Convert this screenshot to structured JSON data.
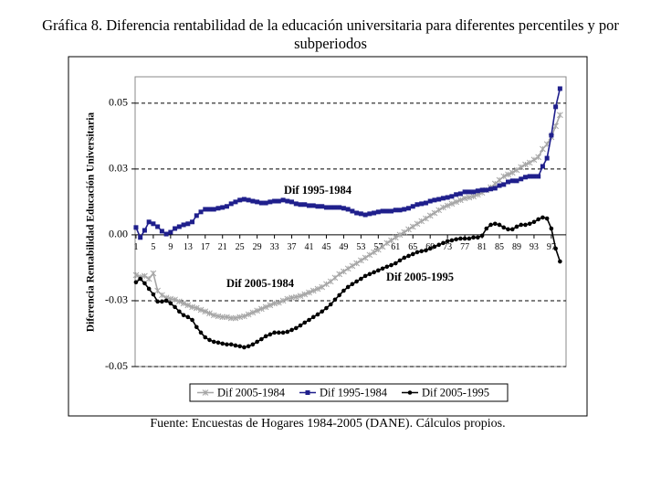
{
  "chart_data": {
    "type": "line",
    "title": "Gráfica 8. Diferencia rentabilidad de la educación universitaria para diferentes percentiles y por subperiodos",
    "ylabel": "Diferencia Rentabilidad Educación Universitaria",
    "source": "Fuente: Encuestas de Hogares 1984-2005 (DANE). Cálculos propios.",
    "annotations": [
      "Dif 1995-1984",
      "Dif 2005-1984",
      "Dif 2005-1995"
    ],
    "legend": "bottom",
    "grid": true,
    "xlim": [
      0.8,
      100.4
    ],
    "xticks": [
      1,
      5,
      9,
      13,
      17,
      21,
      25,
      29,
      33,
      37,
      41,
      45,
      49,
      53,
      57,
      61,
      65,
      69,
      73,
      77,
      81,
      85,
      89,
      93,
      97
    ],
    "ylim": [
      -0.05,
      0.06
    ],
    "yticks": [
      0.05,
      {
        "value": 0.025,
        "label": "0.03"
      },
      {
        "value": 0,
        "label": "0.00"
      },
      {
        "value": -0.025,
        "label": "-0.03"
      },
      -0.05
    ],
    "x": [
      1,
      2,
      3,
      4,
      5,
      6,
      7,
      8,
      9,
      10,
      11,
      12,
      13,
      14,
      15,
      16,
      17,
      18,
      19,
      20,
      21,
      22,
      23,
      24,
      25,
      26,
      27,
      28,
      29,
      30,
      31,
      32,
      33,
      34,
      35,
      36,
      37,
      38,
      39,
      40,
      41,
      42,
      43,
      44,
      45,
      46,
      47,
      48,
      49,
      50,
      51,
      52,
      53,
      54,
      55,
      56,
      57,
      58,
      59,
      60,
      61,
      62,
      63,
      64,
      65,
      66,
      67,
      68,
      69,
      70,
      71,
      72,
      73,
      74,
      75,
      76,
      77,
      78,
      79,
      80,
      81,
      82,
      83,
      84,
      85,
      86,
      87,
      88,
      89,
      90,
      91,
      92,
      93,
      94,
      95,
      96,
      97,
      98,
      99
    ],
    "series": [
      {
        "name": "Dif 2005-1984",
        "color": "#a6a6a6",
        "marker": "star",
        "values": [
          -0.0153,
          -0.016,
          -0.0156,
          -0.0167,
          -0.0146,
          -0.0212,
          -0.0229,
          -0.0239,
          -0.0243,
          -0.0246,
          -0.0253,
          -0.026,
          -0.0267,
          -0.0274,
          -0.0278,
          -0.0285,
          -0.0291,
          -0.0298,
          -0.0305,
          -0.0309,
          -0.0312,
          -0.0312,
          -0.0316,
          -0.0316,
          -0.0312,
          -0.0309,
          -0.0302,
          -0.0295,
          -0.0288,
          -0.0281,
          -0.0274,
          -0.0267,
          -0.026,
          -0.0257,
          -0.025,
          -0.0243,
          -0.0239,
          -0.0236,
          -0.0232,
          -0.0226,
          -0.0219,
          -0.0212,
          -0.0205,
          -0.0198,
          -0.0187,
          -0.0177,
          -0.0163,
          -0.0149,
          -0.0139,
          -0.0128,
          -0.0118,
          -0.0108,
          -0.0097,
          -0.0087,
          -0.0076,
          -0.0066,
          -0.0056,
          -0.0045,
          -0.0031,
          -0.0021,
          -0.001,
          0,
          0.001,
          0.0021,
          0.0031,
          0.0042,
          0.0052,
          0.0062,
          0.0073,
          0.0083,
          0.0094,
          0.0104,
          0.0111,
          0.0118,
          0.0125,
          0.0132,
          0.0139,
          0.0142,
          0.0146,
          0.0153,
          0.016,
          0.017,
          0.018,
          0.0194,
          0.0208,
          0.0222,
          0.0229,
          0.0236,
          0.0246,
          0.0257,
          0.0267,
          0.0274,
          0.0285,
          0.0295,
          0.0326,
          0.0344,
          0.0371,
          0.0413,
          0.0455
        ]
      },
      {
        "name": "Dif 1995-1984",
        "color": "#1f1f8c",
        "marker": "square",
        "values": [
          0.0028,
          -0.001,
          0.0017,
          0.0049,
          0.0042,
          0.0031,
          0.0014,
          0.0003,
          0.001,
          0.0024,
          0.0031,
          0.0038,
          0.0042,
          0.0049,
          0.0073,
          0.0087,
          0.0097,
          0.0097,
          0.0097,
          0.0101,
          0.0104,
          0.0108,
          0.0118,
          0.0125,
          0.0132,
          0.0135,
          0.0132,
          0.0128,
          0.0125,
          0.0121,
          0.0121,
          0.0125,
          0.0128,
          0.0128,
          0.0132,
          0.0128,
          0.0125,
          0.0118,
          0.0115,
          0.0115,
          0.0111,
          0.0111,
          0.0108,
          0.0108,
          0.0104,
          0.0104,
          0.0104,
          0.0104,
          0.0101,
          0.0097,
          0.009,
          0.0083,
          0.008,
          0.0076,
          0.008,
          0.0083,
          0.0087,
          0.009,
          0.009,
          0.009,
          0.0094,
          0.0094,
          0.0097,
          0.0101,
          0.0108,
          0.0115,
          0.0118,
          0.0121,
          0.0128,
          0.0132,
          0.0135,
          0.0139,
          0.0142,
          0.0146,
          0.0153,
          0.0156,
          0.0163,
          0.0163,
          0.0163,
          0.0167,
          0.017,
          0.017,
          0.0174,
          0.0177,
          0.0187,
          0.0191,
          0.0201,
          0.0205,
          0.0205,
          0.0212,
          0.0219,
          0.0222,
          0.0222,
          0.0222,
          0.026,
          0.0291,
          0.0378,
          0.0486,
          0.0555
        ]
      },
      {
        "name": "Dif 2005-1995",
        "color": "#000000",
        "marker": "circle",
        "values": [
          -0.018,
          -0.0167,
          -0.0184,
          -0.0205,
          -0.0226,
          -0.0253,
          -0.0253,
          -0.025,
          -0.026,
          -0.0274,
          -0.0291,
          -0.0305,
          -0.0312,
          -0.0323,
          -0.035,
          -0.0371,
          -0.0389,
          -0.0399,
          -0.0406,
          -0.0409,
          -0.0413,
          -0.0416,
          -0.0416,
          -0.042,
          -0.0423,
          -0.0427,
          -0.0423,
          -0.0416,
          -0.0406,
          -0.0396,
          -0.0385,
          -0.0378,
          -0.0371,
          -0.0371,
          -0.0371,
          -0.0368,
          -0.0361,
          -0.0354,
          -0.0344,
          -0.0333,
          -0.0323,
          -0.0312,
          -0.0302,
          -0.0291,
          -0.0278,
          -0.0264,
          -0.0246,
          -0.0229,
          -0.0212,
          -0.0198,
          -0.0187,
          -0.0177,
          -0.0167,
          -0.0156,
          -0.0149,
          -0.0142,
          -0.0135,
          -0.0128,
          -0.0121,
          -0.0115,
          -0.0108,
          -0.0097,
          -0.0087,
          -0.008,
          -0.0073,
          -0.0066,
          -0.0062,
          -0.0059,
          -0.0052,
          -0.0045,
          -0.0038,
          -0.0031,
          -0.0024,
          -0.0021,
          -0.0017,
          -0.0014,
          -0.0014,
          -0.0014,
          -0.001,
          -0.001,
          -0.0003,
          0.0024,
          0.0038,
          0.0042,
          0.0038,
          0.0028,
          0.0021,
          0.0021,
          0.0031,
          0.0038,
          0.0038,
          0.0042,
          0.0049,
          0.0059,
          0.0066,
          0.0062,
          0.0024,
          -0.0052,
          -0.0101
        ]
      }
    ]
  }
}
